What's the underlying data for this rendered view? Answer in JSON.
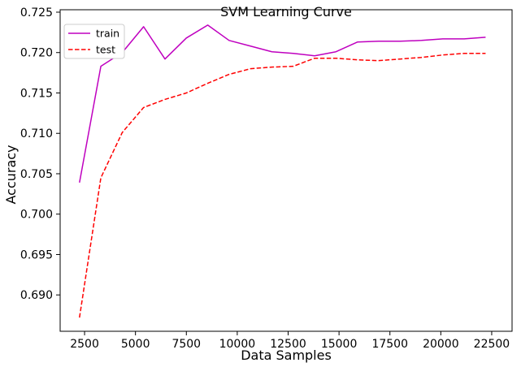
{
  "chart_data": {
    "type": "line",
    "title": "SVM Learning Curve",
    "xlabel": "Data Samples",
    "ylabel": "Accuracy",
    "xlim": [
      1300,
      23500
    ],
    "ylim": [
      0.6855,
      0.7253
    ],
    "xticks": [
      2500,
      5000,
      7500,
      10000,
      12500,
      15000,
      17500,
      20000,
      22500
    ],
    "yticks": [
      0.69,
      0.695,
      0.7,
      0.705,
      0.71,
      0.715,
      0.72,
      0.725
    ],
    "ytick_labels": [
      "0.690",
      "0.695",
      "0.700",
      "0.705",
      "0.710",
      "0.715",
      "0.720",
      "0.725"
    ],
    "grid": false,
    "legend_position": "top-left",
    "x": [
      2250,
      3300,
      4350,
      5400,
      6450,
      7500,
      8550,
      9600,
      10650,
      11700,
      12750,
      13800,
      14850,
      15900,
      16950,
      18000,
      19050,
      20100,
      21150,
      22200
    ],
    "series": [
      {
        "name": "train",
        "color": "#bf00bf",
        "dash": "solid",
        "values": [
          0.7039,
          0.7183,
          0.72,
          0.7232,
          0.7192,
          0.7218,
          0.7234,
          0.7215,
          0.7208,
          0.7201,
          0.7199,
          0.7196,
          0.7201,
          0.7213,
          0.7214,
          0.7214,
          0.7215,
          0.7217,
          0.7217,
          0.7219
        ]
      },
      {
        "name": "test",
        "color": "#ff0000",
        "dash": "dashed",
        "values": [
          0.6872,
          0.7045,
          0.7101,
          0.7132,
          0.7142,
          0.715,
          0.7162,
          0.7173,
          0.718,
          0.7182,
          0.7183,
          0.7193,
          0.7193,
          0.7191,
          0.719,
          0.7192,
          0.7194,
          0.7197,
          0.7199,
          0.7199
        ]
      }
    ]
  }
}
